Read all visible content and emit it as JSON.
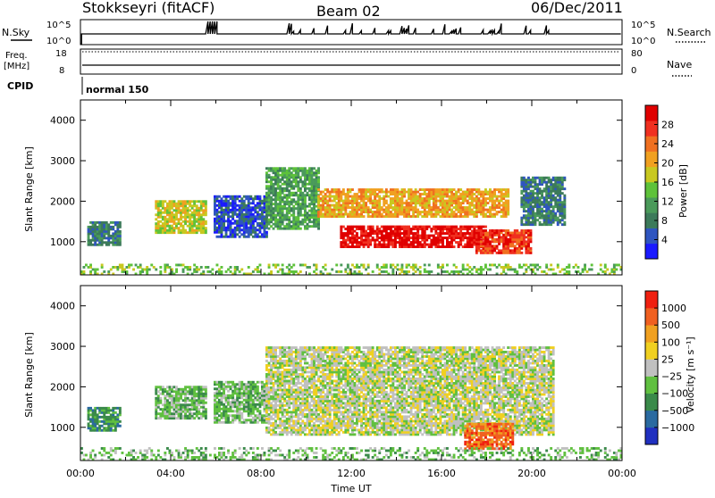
{
  "header": {
    "station": "Stokkseyri (fitACF)",
    "beam": "Beam 02",
    "date": "06/Dec/2011",
    "nsky_label": "N.Sky",
    "nsearch_label": "N.Search",
    "freq_label_1": "Freq.",
    "freq_label_2": "[MHz]",
    "cpid_label": "CPID",
    "nave_label": "Nave",
    "cpid_value": "normal 150",
    "nsky_ticks": [
      "10^5",
      "10^0"
    ],
    "nsearch_ticks": [
      "10^5",
      "10^0"
    ],
    "freq_ticks": [
      "18",
      "8"
    ],
    "nave_ticks": [
      "80",
      "0"
    ]
  },
  "chart_data": [
    {
      "type": "heatmap",
      "panel": "power",
      "ylabel": "Slant Range [km]",
      "xlabel": "",
      "ylim": [
        180,
        4500
      ],
      "y_ticks": [
        1000,
        2000,
        3000,
        4000
      ],
      "x_ticks": [
        "00:00",
        "04:00",
        "08:00",
        "12:00",
        "16:00",
        "20:00",
        "00:00"
      ],
      "xlim_hours": [
        0,
        24
      ],
      "colorbar": {
        "label": "Power [dB]",
        "ticks": [
          "4",
          "8",
          "12",
          "16",
          "20",
          "24",
          "28"
        ],
        "colors": [
          "#1a1aff",
          "#2f55c0",
          "#3c7a5a",
          "#4a9a5a",
          "#5ec23a",
          "#c8c820",
          "#f0a020",
          "#f07020",
          "#f03020",
          "#e00000"
        ]
      },
      "regions": [
        {
          "t0": 0.3,
          "t1": 1.8,
          "r0": 900,
          "r1": 1500,
          "level": 2
        },
        {
          "t0": 3.3,
          "t1": 5.5,
          "r0": 1200,
          "r1": 2000,
          "level": 5
        },
        {
          "t0": 5.9,
          "t1": 8.2,
          "r0": 1100,
          "r1": 2100,
          "level": 1
        },
        {
          "t0": 8.2,
          "t1": 10.5,
          "r0": 1300,
          "r1": 2800,
          "level": 3
        },
        {
          "t0": 10.5,
          "t1": 19.0,
          "r0": 1600,
          "r1": 2300,
          "level": 6
        },
        {
          "t0": 11.5,
          "t1": 18.0,
          "r0": 850,
          "r1": 1400,
          "level": 9
        },
        {
          "t0": 17.5,
          "t1": 20.0,
          "r0": 700,
          "r1": 1300,
          "level": 8
        },
        {
          "t0": 19.5,
          "t1": 21.5,
          "r0": 1400,
          "r1": 2600,
          "level": 2
        },
        {
          "t0": 0.0,
          "t1": 24.0,
          "r0": 180,
          "r1": 420,
          "level": 4
        }
      ]
    },
    {
      "type": "heatmap",
      "panel": "velocity",
      "ylabel": "Slant Range [km]",
      "xlabel": "Time UT",
      "ylim": [
        180,
        4500
      ],
      "y_ticks": [
        1000,
        2000,
        3000,
        4000
      ],
      "x_ticks": [
        "00:00",
        "04:00",
        "08:00",
        "12:00",
        "16:00",
        "20:00",
        "00:00"
      ],
      "xlim_hours": [
        0,
        24
      ],
      "colorbar": {
        "label": "Velocity [m s⁻¹]",
        "ticks": [
          "1000",
          "500",
          "100",
          "25",
          "−25",
          "−100",
          "−500",
          "−1000"
        ],
        "colors": [
          "#2030c0",
          "#2a6aa0",
          "#3a8a4a",
          "#60c040",
          "#c0c0c0",
          "#f0d020",
          "#f0a020",
          "#f06020",
          "#f02010"
        ]
      },
      "regions": [
        {
          "t0": 0.3,
          "t1": 1.8,
          "r0": 900,
          "r1": 1500,
          "level": 2
        },
        {
          "t0": 3.3,
          "t1": 5.5,
          "r0": 1200,
          "r1": 2000,
          "level": 3
        },
        {
          "t0": 5.9,
          "t1": 8.2,
          "r0": 1100,
          "r1": 2100,
          "level": 3
        },
        {
          "t0": 8.2,
          "t1": 21.0,
          "r0": 800,
          "r1": 3000,
          "level": 4
        },
        {
          "t0": 17.0,
          "t1": 19.2,
          "r0": 450,
          "r1": 1100,
          "level": 7
        },
        {
          "t0": 0.0,
          "t1": 24.0,
          "r0": 180,
          "r1": 500,
          "level": 3
        }
      ]
    }
  ]
}
